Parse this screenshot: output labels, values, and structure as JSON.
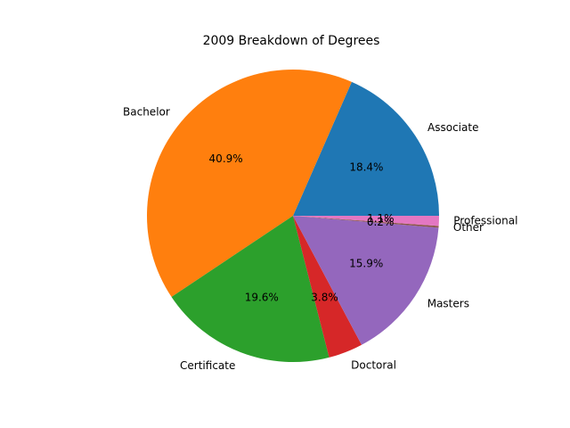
{
  "chart_data": {
    "type": "pie",
    "title": "2009 Breakdown of Degrees",
    "start_angle_deg": 0,
    "direction": "counterclockwise",
    "slices": [
      {
        "label": "Associate",
        "value": 18.4,
        "pct_label": "18.4%",
        "color": "#1f77b4"
      },
      {
        "label": "Bachelor",
        "value": 40.9,
        "pct_label": "40.9%",
        "color": "#ff7f0e"
      },
      {
        "label": "Certificate",
        "value": 19.6,
        "pct_label": "19.6%",
        "color": "#2ca02c"
      },
      {
        "label": "Doctoral",
        "value": 3.8,
        "pct_label": "3.8%",
        "color": "#d62728"
      },
      {
        "label": "Masters",
        "value": 15.9,
        "pct_label": "15.9%",
        "color": "#9467bd"
      },
      {
        "label": "Other",
        "value": 0.2,
        "pct_label": "0.2%",
        "color": "#8c564b"
      },
      {
        "label": "Professional",
        "value": 1.1,
        "pct_label": "1.1%",
        "color": "#e377c2"
      }
    ]
  }
}
